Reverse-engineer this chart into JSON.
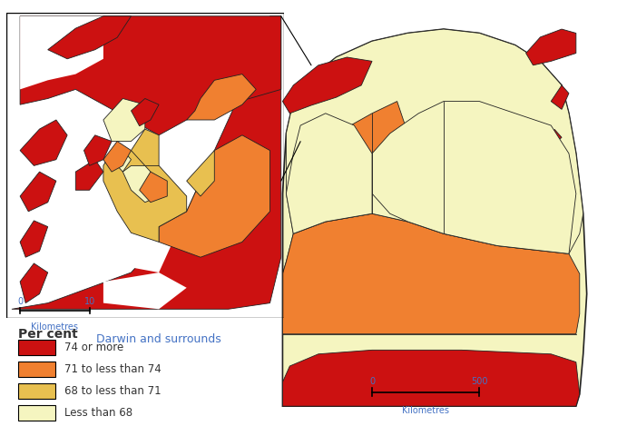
{
  "colors": {
    "cat1": "#CC1111",
    "cat2": "#F08030",
    "cat3": "#E8C050",
    "cat4": "#F5F5C0",
    "border": "#222222",
    "background": "#FFFFFF",
    "text_blue": "#4472C4",
    "text_dark": "#333333"
  },
  "legend": {
    "title": "Per cent",
    "labels": [
      "74 or more",
      "71 to less than 74",
      "68 to less than 71",
      "Less than 68"
    ],
    "colors": [
      "#CC1111",
      "#F08030",
      "#E8C050",
      "#F5F5C0"
    ]
  },
  "inset_label": "Darwin and surrounds"
}
